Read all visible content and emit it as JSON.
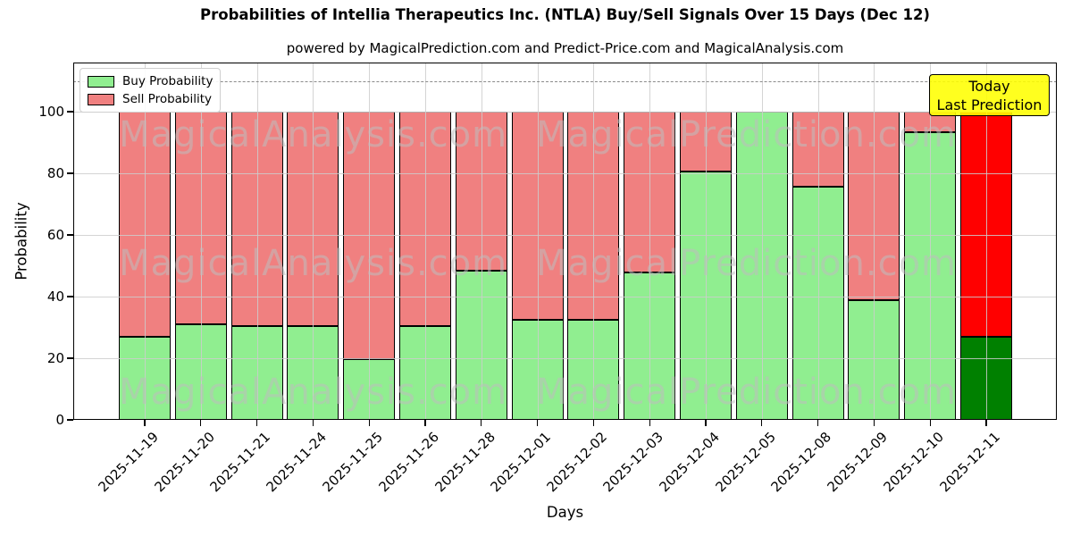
{
  "chart_data": {
    "type": "bar",
    "stacked": true,
    "title": "Probabilities of Intellia Therapeutics Inc. (NTLA) Buy/Sell Signals Over 15 Days (Dec 12)",
    "subtitle": "powered by MagicalPrediction.com and Predict-Price.com and MagicalAnalysis.com",
    "xlabel": "Days",
    "ylabel": "Probability",
    "categories": [
      "2025-11-19",
      "2025-11-20",
      "2025-11-21",
      "2025-11-24",
      "2025-11-25",
      "2025-11-26",
      "2025-11-28",
      "2025-12-01",
      "2025-12-02",
      "2025-12-03",
      "2025-12-04",
      "2025-12-05",
      "2025-12-08",
      "2025-12-09",
      "2025-12-10",
      "2025-12-11"
    ],
    "series": [
      {
        "name": "Buy Probability",
        "color": "#90EE90",
        "today_color": "#008000",
        "values": [
          27.0,
          30.9,
          30.4,
          30.5,
          19.8,
          30.4,
          48.4,
          32.5,
          32.6,
          47.9,
          80.7,
          100.0,
          75.8,
          38.8,
          93.4,
          27.0
        ]
      },
      {
        "name": "Sell Probability",
        "color": "#F08080",
        "today_color": "#FF0000",
        "values": [
          73.0,
          69.1,
          69.6,
          69.5,
          80.2,
          69.6,
          51.6,
          67.5,
          67.4,
          52.1,
          19.3,
          0.0,
          24.2,
          61.2,
          6.6,
          73.0
        ]
      }
    ],
    "today_index": 15,
    "annotation": {
      "text_lines": [
        "Today",
        "Last Prediction"
      ],
      "bg_color": "#FFFF00"
    },
    "yticks": [
      0,
      20,
      40,
      60,
      80,
      100
    ],
    "ylim": [
      0,
      116
    ],
    "dashed_line_y": 110,
    "grid": true,
    "legend_position": "upper left",
    "bar_edge_color": "#000000"
  },
  "watermarks": {
    "left_text": "MagicalAnalysis.com",
    "right_text": "MagicalPrediction.com"
  }
}
